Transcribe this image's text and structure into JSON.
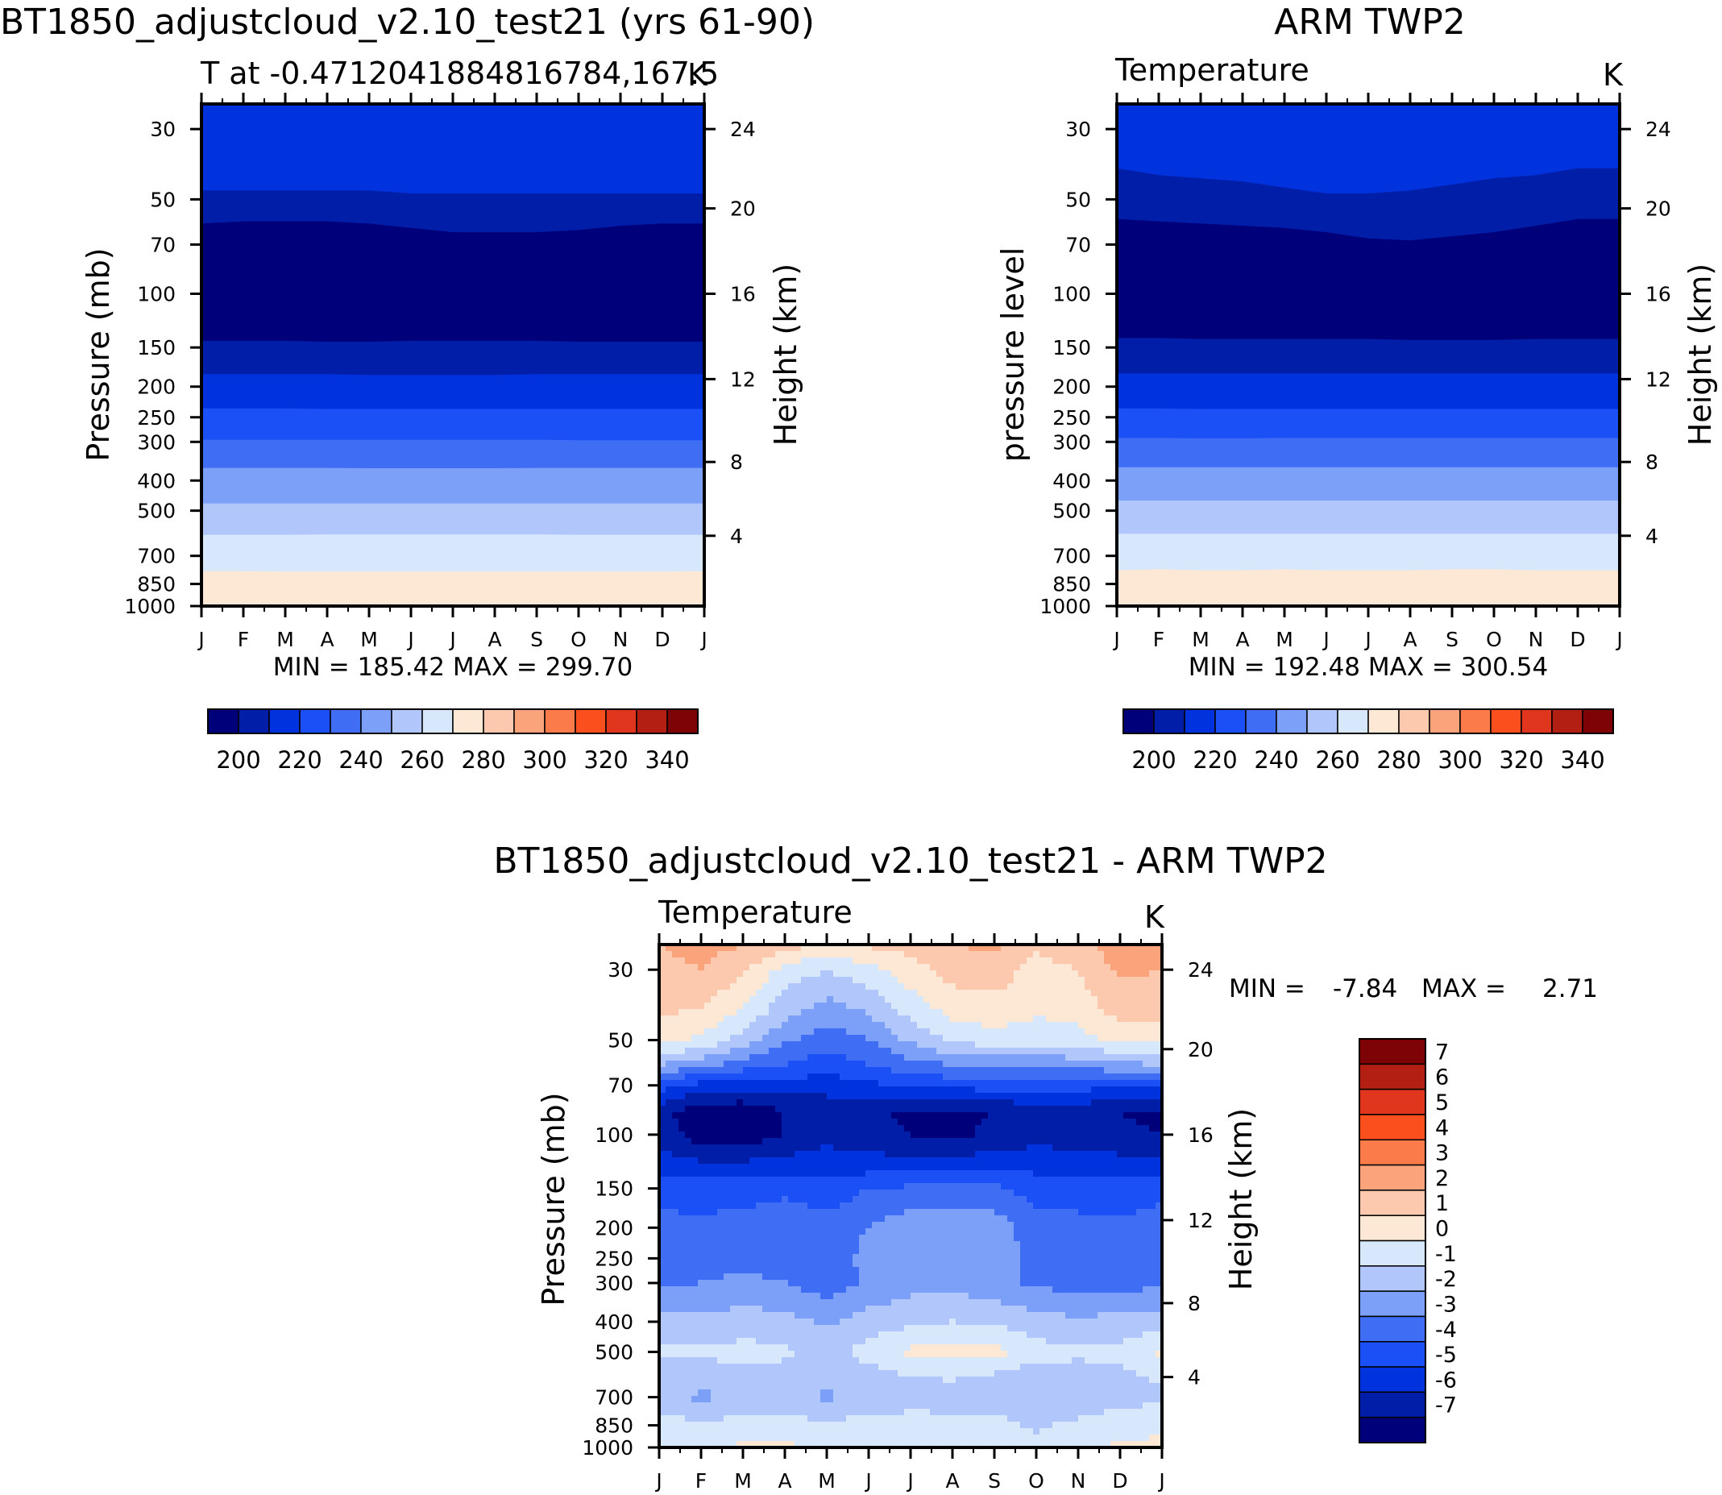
{
  "colors": {
    "abs_levels": [
      "#00007a",
      "#001ea8",
      "#0033dd",
      "#1a50f5",
      "#3f6ef5",
      "#7c9ff8",
      "#b1c7fb",
      "#d7e7fc",
      "#fde8d5",
      "#fcc8ae",
      "#fba47b",
      "#fb7b4a",
      "#fb4f1e",
      "#e0361e",
      "#b31f12",
      "#7e0306"
    ],
    "diff_levels": [
      "#00007a",
      "#001ea8",
      "#0033dd",
      "#1a50f5",
      "#3f6ef5",
      "#7c9ff8",
      "#b1c7fb",
      "#d7e7fc",
      "#fde8d5",
      "#fcc8ae",
      "#fba47b",
      "#fb7b4a",
      "#fb4f1e",
      "#e0361e",
      "#b31f12",
      "#7e0306"
    ]
  },
  "chart_data": [
    {
      "type": "heatmap",
      "title": "BT1850_adjustcloud_v2.10_test21 (yrs 61-90)",
      "subtitle_left": "T at -0.4712041884816784,167.5",
      "subtitle_right": "K",
      "ylabel": "Pressure (mb)",
      "ylabel_right": "Height (km)",
      "x_ticks": [
        "J",
        "F",
        "M",
        "A",
        "M",
        "J",
        "J",
        "A",
        "S",
        "O",
        "N",
        "D",
        "J"
      ],
      "y_ticks": [
        "30",
        "50",
        "70",
        "100",
        "150",
        "200",
        "250",
        "300",
        "400",
        "500",
        "700",
        "850",
        "1000"
      ],
      "y_ticks_right": [
        "24",
        "20",
        "16",
        "12",
        "8",
        "4"
      ],
      "stats": "MIN = 185.42 MAX = 299.70",
      "min": 185.42,
      "max": 299.7,
      "legend_labels": [
        "200",
        "220",
        "240",
        "260",
        "280",
        "300",
        "320",
        "340"
      ],
      "boundaries_hpa": [
        [
          47,
          47,
          47,
          47,
          47,
          48,
          48,
          48,
          48,
          48,
          48,
          48,
          48
        ],
        [
          60,
          59,
          59,
          59,
          60,
          62,
          64,
          64,
          64,
          63,
          61,
          60,
          60
        ],
        [
          143,
          143,
          143,
          144,
          144,
          143,
          143,
          143,
          143,
          144,
          144,
          144,
          144
        ],
        [
          183,
          183,
          183,
          183,
          184,
          184,
          184,
          184,
          183,
          183,
          183,
          183,
          183
        ],
        [
          235,
          235,
          235,
          236,
          236,
          236,
          236,
          236,
          236,
          236,
          236,
          236,
          236
        ],
        [
          296,
          296,
          296,
          296,
          296,
          296,
          296,
          296,
          296,
          297,
          297,
          297,
          297
        ],
        [
          365,
          365,
          365,
          365,
          366,
          366,
          366,
          366,
          365,
          365,
          365,
          365,
          365
        ],
        [
          475,
          475,
          475,
          475,
          475,
          475,
          475,
          475,
          475,
          475,
          475,
          475,
          475
        ],
        [
          600,
          600,
          600,
          598,
          598,
          598,
          598,
          598,
          598,
          600,
          600,
          600,
          600
        ],
        [
          780,
          780,
          782,
          782,
          782,
          782,
          782,
          782,
          782,
          782,
          782,
          782,
          780
        ]
      ]
    },
    {
      "type": "heatmap",
      "title": "ARM TWP2",
      "subtitle_left": "Temperature",
      "subtitle_right": "K",
      "ylabel": "pressure level",
      "ylabel_right": "Height (km)",
      "x_ticks": [
        "J",
        "F",
        "M",
        "A",
        "M",
        "J",
        "J",
        "A",
        "S",
        "O",
        "N",
        "D",
        "J"
      ],
      "y_ticks": [
        "30",
        "50",
        "70",
        "100",
        "150",
        "200",
        "250",
        "300",
        "400",
        "500",
        "700",
        "850",
        "1000"
      ],
      "y_ticks_right": [
        "24",
        "20",
        "16",
        "12",
        "8",
        "4"
      ],
      "stats": "MIN = 192.48 MAX = 300.54",
      "min": 192.48,
      "max": 300.54,
      "legend_labels": [
        "200",
        "220",
        "240",
        "260",
        "280",
        "300",
        "320",
        "340"
      ],
      "boundaries_hpa": [
        [
          40,
          42,
          43,
          44,
          46,
          48,
          48,
          47,
          45,
          43,
          42,
          40,
          40
        ],
        [
          58,
          59,
          60,
          61,
          62,
          64,
          67,
          68,
          66,
          64,
          61,
          58,
          58
        ],
        [
          140,
          140,
          141,
          141,
          141,
          141,
          141,
          142,
          142,
          142,
          141,
          141,
          141
        ],
        [
          182,
          182,
          182,
          182,
          182,
          182,
          182,
          182,
          182,
          182,
          182,
          182,
          182
        ],
        [
          235,
          235,
          236,
          236,
          236,
          236,
          236,
          236,
          236,
          236,
          236,
          236,
          236
        ],
        [
          292,
          292,
          293,
          293,
          292,
          292,
          292,
          292,
          292,
          292,
          292,
          292,
          292
        ],
        [
          363,
          363,
          363,
          363,
          363,
          363,
          363,
          363,
          363,
          363,
          363,
          363,
          363
        ],
        [
          465,
          465,
          465,
          465,
          465,
          465,
          465,
          465,
          465,
          465,
          465,
          465,
          465
        ],
        [
          595,
          595,
          595,
          595,
          595,
          595,
          595,
          595,
          595,
          595,
          595,
          595,
          595
        ],
        [
          775,
          770,
          775,
          775,
          770,
          775,
          775,
          775,
          770,
          770,
          775,
          775,
          775
        ]
      ]
    },
    {
      "type": "heatmap",
      "title": "BT1850_adjustcloud_v2.10_test21 - ARM TWP2",
      "subtitle_left": "Temperature",
      "subtitle_right": "K",
      "ylabel": "Pressure (mb)",
      "ylabel_right": "Height (km)",
      "x_ticks": [
        "J",
        "F",
        "M",
        "A",
        "M",
        "J",
        "J",
        "A",
        "S",
        "O",
        "N",
        "D",
        "J"
      ],
      "y_ticks": [
        "30",
        "50",
        "70",
        "100",
        "150",
        "200",
        "250",
        "300",
        "400",
        "500",
        "700",
        "850",
        "1000"
      ],
      "y_ticks_right": [
        "24",
        "20",
        "16",
        "12",
        "8",
        "4"
      ],
      "stats_min_label": "MIN =",
      "stats_min": "-7.84",
      "stats_max_label": "MAX =",
      "stats_max": "2.71",
      "min": -7.84,
      "max": 2.71,
      "legend_labels": [
        "7",
        "6",
        "5",
        "4",
        "3",
        "2",
        "1",
        "0",
        "-1",
        "-2",
        "-3",
        "-4",
        "-5",
        "-6",
        "-7"
      ],
      "grid_pressure_hpa": [
        20,
        30,
        40,
        50,
        60,
        70,
        85,
        100,
        125,
        150,
        200,
        250,
        300,
        400,
        500,
        600,
        700,
        850,
        1000
      ],
      "grid_values": [
        [
          2.0,
          2.4,
          2.0,
          1.5,
          0.8,
          1.2,
          1.4,
          2.0,
          2.2,
          1.2,
          1.6,
          2.7,
          2.4
        ],
        [
          1.7,
          2.0,
          1.2,
          -0.4,
          -1.0,
          -0.4,
          0.6,
          1.4,
          1.6,
          0.6,
          1.0,
          2.2,
          2.0
        ],
        [
          1.2,
          1.0,
          0.0,
          -1.6,
          -2.4,
          -1.8,
          -0.6,
          0.4,
          0.6,
          0.2,
          0.4,
          1.4,
          1.4
        ],
        [
          0.4,
          -0.2,
          -1.4,
          -2.8,
          -3.6,
          -3.0,
          -1.8,
          -0.8,
          -0.4,
          -0.6,
          -0.4,
          0.4,
          0.4
        ],
        [
          -2.0,
          -2.6,
          -3.4,
          -4.0,
          -4.6,
          -4.0,
          -3.4,
          -3.0,
          -2.8,
          -2.8,
          -2.6,
          -2.2,
          -2.0
        ],
        [
          -4.6,
          -5.4,
          -5.6,
          -5.4,
          -5.6,
          -5.2,
          -4.8,
          -4.6,
          -4.6,
          -4.6,
          -4.6,
          -4.8,
          -4.6
        ],
        [
          -6.6,
          -7.8,
          -7.8,
          -7.0,
          -6.6,
          -6.8,
          -7.2,
          -7.3,
          -7.0,
          -6.6,
          -6.6,
          -7.0,
          -7.2
        ],
        [
          -6.2,
          -7.6,
          -7.8,
          -7.0,
          -6.4,
          -6.6,
          -7.0,
          -7.2,
          -6.8,
          -6.4,
          -6.4,
          -6.8,
          -7.0
        ],
        [
          -5.6,
          -5.8,
          -5.8,
          -5.6,
          -5.4,
          -5.6,
          -5.6,
          -5.6,
          -5.4,
          -5.4,
          -5.6,
          -5.6,
          -5.6
        ],
        [
          -4.2,
          -4.4,
          -4.4,
          -4.2,
          -4.6,
          -4.0,
          -3.8,
          -3.8,
          -3.8,
          -4.4,
          -4.6,
          -4.6,
          -4.2
        ],
        [
          -3.8,
          -3.8,
          -3.6,
          -3.4,
          -3.6,
          -3.0,
          -2.4,
          -2.2,
          -2.4,
          -3.6,
          -3.6,
          -3.8,
          -3.6
        ],
        [
          -3.4,
          -3.6,
          -3.6,
          -3.6,
          -3.8,
          -2.6,
          -2.4,
          -2.4,
          -2.4,
          -3.4,
          -3.4,
          -3.6,
          -3.4
        ],
        [
          -3.2,
          -3.0,
          -2.6,
          -3.0,
          -3.6,
          -2.8,
          -2.4,
          -2.4,
          -2.6,
          -3.2,
          -3.4,
          -3.4,
          -3.2
        ],
        [
          -1.6,
          -1.8,
          -1.6,
          -1.6,
          -2.2,
          -1.6,
          -1.2,
          -1.0,
          -1.2,
          -1.6,
          -1.8,
          -1.6,
          -1.6
        ],
        [
          -0.9,
          -0.8,
          -0.6,
          -0.8,
          -1.4,
          -0.6,
          0.2,
          0.3,
          0.4,
          -0.6,
          -0.8,
          -0.8,
          0.2
        ],
        [
          -1.2,
          -1.6,
          -1.4,
          -1.4,
          -1.8,
          -1.4,
          -1.0,
          -0.9,
          -1.2,
          -1.6,
          -1.4,
          -1.2,
          -0.8
        ],
        [
          -1.6,
          -2.2,
          -1.8,
          -1.6,
          -2.2,
          -1.6,
          -1.4,
          -1.4,
          -1.6,
          -2.0,
          -1.8,
          -1.4,
          -1.2
        ],
        [
          -0.4,
          -0.8,
          -0.6,
          -0.6,
          -0.8,
          -0.6,
          -0.6,
          -0.7,
          -0.6,
          -1.2,
          -0.7,
          -0.4,
          -0.2
        ],
        [
          -0.4,
          -0.4,
          0.2,
          0.3,
          -0.4,
          -0.3,
          -0.6,
          -0.6,
          -0.4,
          -0.6,
          -0.4,
          0.2,
          0.2
        ]
      ]
    }
  ]
}
